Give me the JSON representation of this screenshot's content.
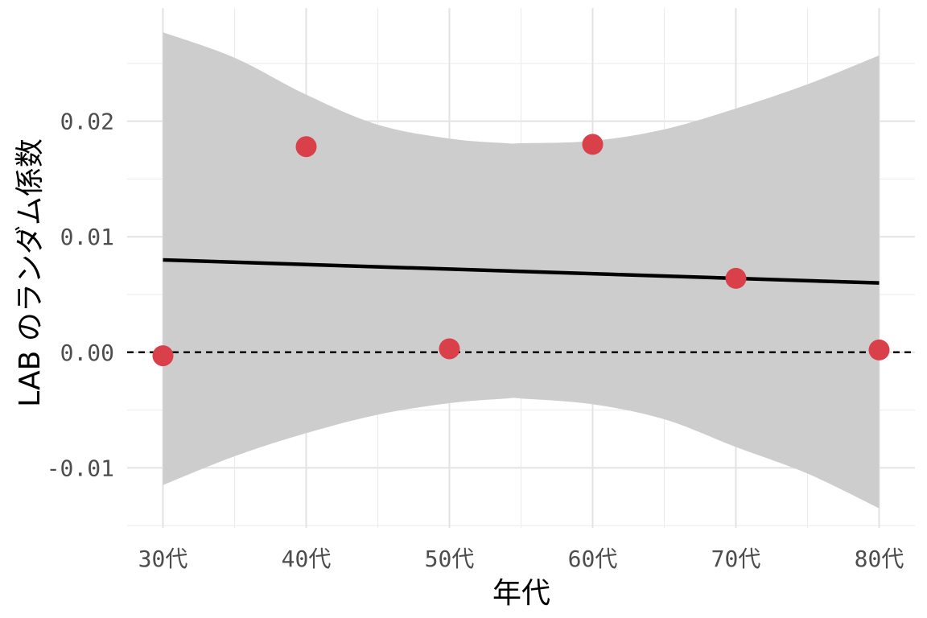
{
  "chart_data": {
    "type": "scatter",
    "title": "",
    "xlabel": "年代",
    "ylabel": "LAB のランダム係数",
    "categories": [
      "30代",
      "40代",
      "50代",
      "60代",
      "70代",
      "80代"
    ],
    "x_values": [
      30,
      40,
      50,
      60,
      70,
      80
    ],
    "xlim": [
      27.5,
      82.5
    ],
    "ylim": [
      -0.0152,
      0.0298
    ],
    "y_ticks": [
      -0.01,
      0.0,
      0.01,
      0.02
    ],
    "y_tick_labels": [
      "-0.01",
      "0.00",
      "0.01",
      "0.02"
    ],
    "grid": true,
    "legend": "none",
    "series": [
      {
        "kind": "points",
        "values": [
          -0.0003,
          0.0178,
          0.0003,
          0.018,
          0.0064,
          0.0002
        ],
        "color": "#d9404a"
      },
      {
        "kind": "linear-fit",
        "x": [
          30,
          80
        ],
        "values": [
          0.008,
          0.006
        ],
        "color": "#000000"
      },
      {
        "kind": "confidence-band",
        "x": [
          30,
          35,
          40,
          45,
          50,
          54,
          55,
          60,
          65,
          70,
          75,
          80
        ],
        "lower": [
          -0.0115,
          -0.009,
          -0.007,
          -0.0054,
          -0.0044,
          -0.004,
          -0.004,
          -0.0045,
          -0.0058,
          -0.0082,
          -0.0105,
          -0.0135
        ],
        "upper": [
          0.0277,
          0.0255,
          0.0223,
          0.0197,
          0.0185,
          0.0181,
          0.0181,
          0.0183,
          0.0193,
          0.0211,
          0.0232,
          0.0257
        ],
        "color": "#cdcdcd"
      },
      {
        "kind": "reference-line",
        "value": 0.0,
        "style": "dashed",
        "color": "#000000"
      }
    ]
  }
}
